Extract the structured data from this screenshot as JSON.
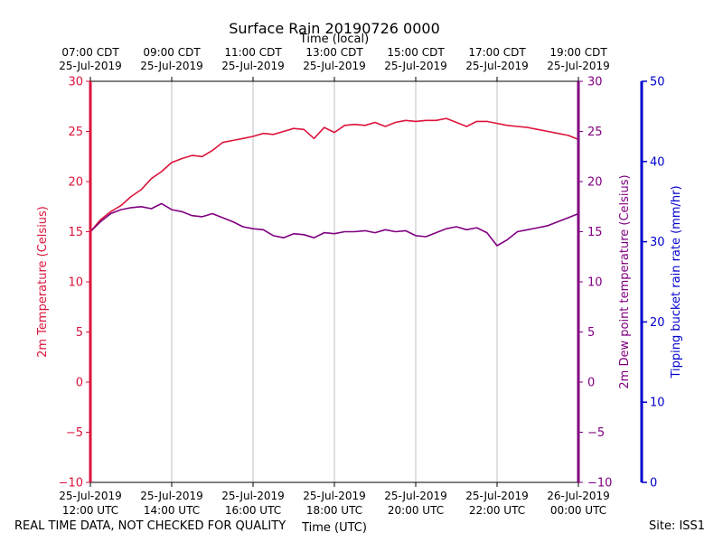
{
  "chart_data": {
    "type": "line",
    "title": "Surface Rain 20190726 0000",
    "xlabel": "Time (UTC)",
    "xlabel_top": "Time (local)",
    "ylabel_left": "2m Temperature (Celsius)",
    "ylabel_right": "2m Dew point temperature (Celsius)",
    "ylabel_far_right": "Tipping bucket rain rate (mm/hr)",
    "ylim": [
      -10,
      30
    ],
    "ylim_far_right": [
      0,
      50
    ],
    "xlim_hours_utc": [
      12,
      24
    ],
    "grid_x": true,
    "y_ticks_left": [
      -10,
      -5,
      0,
      5,
      10,
      15,
      20,
      25,
      30
    ],
    "y_ticks_right": [
      -10,
      -5,
      0,
      5,
      10,
      15,
      20,
      25,
      30
    ],
    "y_ticks_far_right": [
      0,
      10,
      20,
      30,
      40,
      50
    ],
    "x_ticks_utc": [
      {
        "hour": 12,
        "line1": "25-Jul-2019",
        "line2": "12:00 UTC"
      },
      {
        "hour": 14,
        "line1": "25-Jul-2019",
        "line2": "14:00 UTC"
      },
      {
        "hour": 16,
        "line1": "25-Jul-2019",
        "line2": "16:00 UTC"
      },
      {
        "hour": 18,
        "line1": "25-Jul-2019",
        "line2": "18:00 UTC"
      },
      {
        "hour": 20,
        "line1": "25-Jul-2019",
        "line2": "20:00 UTC"
      },
      {
        "hour": 22,
        "line1": "25-Jul-2019",
        "line2": "22:00 UTC"
      },
      {
        "hour": 24,
        "line1": "26-Jul-2019",
        "line2": "00:00 UTC"
      }
    ],
    "x_ticks_local": [
      {
        "hour": 12,
        "line1": "07:00 CDT",
        "line2": "25-Jul-2019"
      },
      {
        "hour": 14,
        "line1": "09:00 CDT",
        "line2": "25-Jul-2019"
      },
      {
        "hour": 16,
        "line1": "11:00 CDT",
        "line2": "25-Jul-2019"
      },
      {
        "hour": 18,
        "line1": "13:00 CDT",
        "line2": "25-Jul-2019"
      },
      {
        "hour": 20,
        "line1": "15:00 CDT",
        "line2": "25-Jul-2019"
      },
      {
        "hour": 22,
        "line1": "17:00 CDT",
        "line2": "25-Jul-2019"
      },
      {
        "hour": 24,
        "line1": "19:00 CDT",
        "line2": "25-Jul-2019"
      }
    ],
    "series": [
      {
        "name": "2m Temperature",
        "color": "#dc143c",
        "axis": "left",
        "x": [
          12.0,
          12.25,
          12.5,
          12.75,
          13.0,
          13.25,
          13.5,
          13.75,
          14.0,
          14.25,
          14.5,
          14.75,
          15.0,
          15.25,
          15.5,
          15.75,
          16.0,
          16.25,
          16.5,
          16.75,
          17.0,
          17.25,
          17.5,
          17.75,
          18.0,
          18.25,
          18.5,
          18.75,
          19.0,
          19.25,
          19.5,
          19.75,
          20.0,
          20.25,
          20.5,
          20.75,
          21.0,
          21.25,
          21.5,
          21.75,
          22.0,
          22.25,
          22.5,
          22.75,
          23.0,
          23.25,
          23.5,
          23.75,
          24.0
        ],
        "values": [
          15.0,
          16.2,
          17.0,
          17.6,
          18.5,
          19.2,
          20.3,
          21.0,
          21.9,
          22.3,
          22.6,
          22.5,
          23.1,
          23.9,
          24.1,
          24.3,
          24.5,
          24.8,
          24.7,
          25.0,
          25.3,
          25.2,
          24.3,
          25.4,
          24.9,
          25.6,
          25.7,
          25.6,
          25.9,
          25.5,
          25.9,
          26.1,
          26.0,
          26.1,
          26.1,
          26.3,
          25.9,
          25.5,
          26.0,
          26.0,
          25.8,
          25.6,
          25.5,
          25.4,
          25.2,
          25.0,
          24.8,
          24.6,
          24.2
        ]
      },
      {
        "name": "2m Dew point temperature",
        "color": "#800080",
        "axis": "right",
        "x": [
          12.0,
          12.25,
          12.5,
          12.75,
          13.0,
          13.25,
          13.5,
          13.75,
          14.0,
          14.25,
          14.5,
          14.75,
          15.0,
          15.25,
          15.5,
          15.75,
          16.0,
          16.25,
          16.5,
          16.75,
          17.0,
          17.25,
          17.5,
          17.75,
          18.0,
          18.25,
          18.5,
          18.75,
          19.0,
          19.25,
          19.5,
          19.75,
          20.0,
          20.25,
          20.5,
          20.75,
          21.0,
          21.25,
          21.5,
          21.75,
          22.0,
          22.25,
          22.5,
          22.75,
          23.0,
          23.25,
          23.5,
          23.75,
          24.0
        ],
        "values": [
          15.0,
          16.0,
          16.8,
          17.2,
          17.4,
          17.5,
          17.3,
          17.8,
          17.2,
          17.0,
          16.6,
          16.5,
          16.8,
          16.4,
          16.0,
          15.5,
          15.3,
          15.2,
          14.6,
          14.4,
          14.8,
          14.7,
          14.4,
          14.9,
          14.8,
          15.0,
          15.0,
          15.1,
          14.9,
          15.2,
          15.0,
          15.1,
          14.6,
          14.5,
          14.9,
          15.3,
          15.5,
          15.2,
          15.4,
          14.9,
          13.6,
          14.2,
          15.0,
          15.2,
          15.4,
          15.6,
          16.0,
          16.4,
          16.8
        ]
      }
    ]
  },
  "footer": {
    "left_note": "REAL TIME DATA, NOT CHECKED FOR QUALITY",
    "site": "Site: ISS1"
  },
  "colors": {
    "temperature": "#dc143c",
    "dewpoint": "#800080",
    "rain": "#0000cd"
  }
}
